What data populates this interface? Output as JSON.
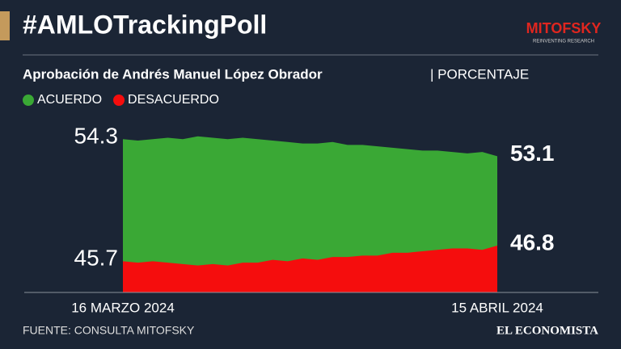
{
  "chart_data": {
    "type": "area",
    "title": "#AMLOTrackingPoll",
    "brand": "MITOFSKY",
    "brand_tagline": "REINVENTING RESEARCH",
    "subtitle": "Aprobación de Andrés Manuel López Obrador",
    "unit": "| PORCENTAJE",
    "source": "FUENTE: CONSULTA MITOFSKY",
    "publisher": "EL ECONOMISTA",
    "categories": [
      "16 MARZO 2024",
      null,
      null,
      null,
      null,
      null,
      null,
      null,
      null,
      null,
      null,
      null,
      null,
      null,
      null,
      null,
      null,
      null,
      null,
      null,
      null,
      null,
      null,
      null,
      null,
      "15 ABRIL 2024"
    ],
    "series": [
      {
        "name": "ACUERDO",
        "color": "#3aa835",
        "values": [
          54.3,
          54.2,
          54.3,
          54.4,
          54.3,
          54.5,
          54.4,
          54.3,
          54.4,
          54.3,
          54.2,
          54.1,
          54.0,
          54.0,
          54.1,
          53.9,
          53.9,
          53.8,
          53.7,
          53.6,
          53.5,
          53.5,
          53.4,
          53.3,
          53.4,
          53.1
        ]
      },
      {
        "name": "DESACUERDO",
        "color": "#f50d0d",
        "values": [
          45.7,
          45.6,
          45.7,
          45.6,
          45.5,
          45.4,
          45.5,
          45.4,
          45.6,
          45.6,
          45.8,
          45.7,
          45.9,
          45.8,
          46.0,
          46.0,
          46.1,
          46.1,
          46.3,
          46.3,
          46.4,
          46.5,
          46.6,
          46.6,
          46.5,
          46.8
        ]
      }
    ],
    "ylim": [
      43.5,
      55
    ]
  }
}
